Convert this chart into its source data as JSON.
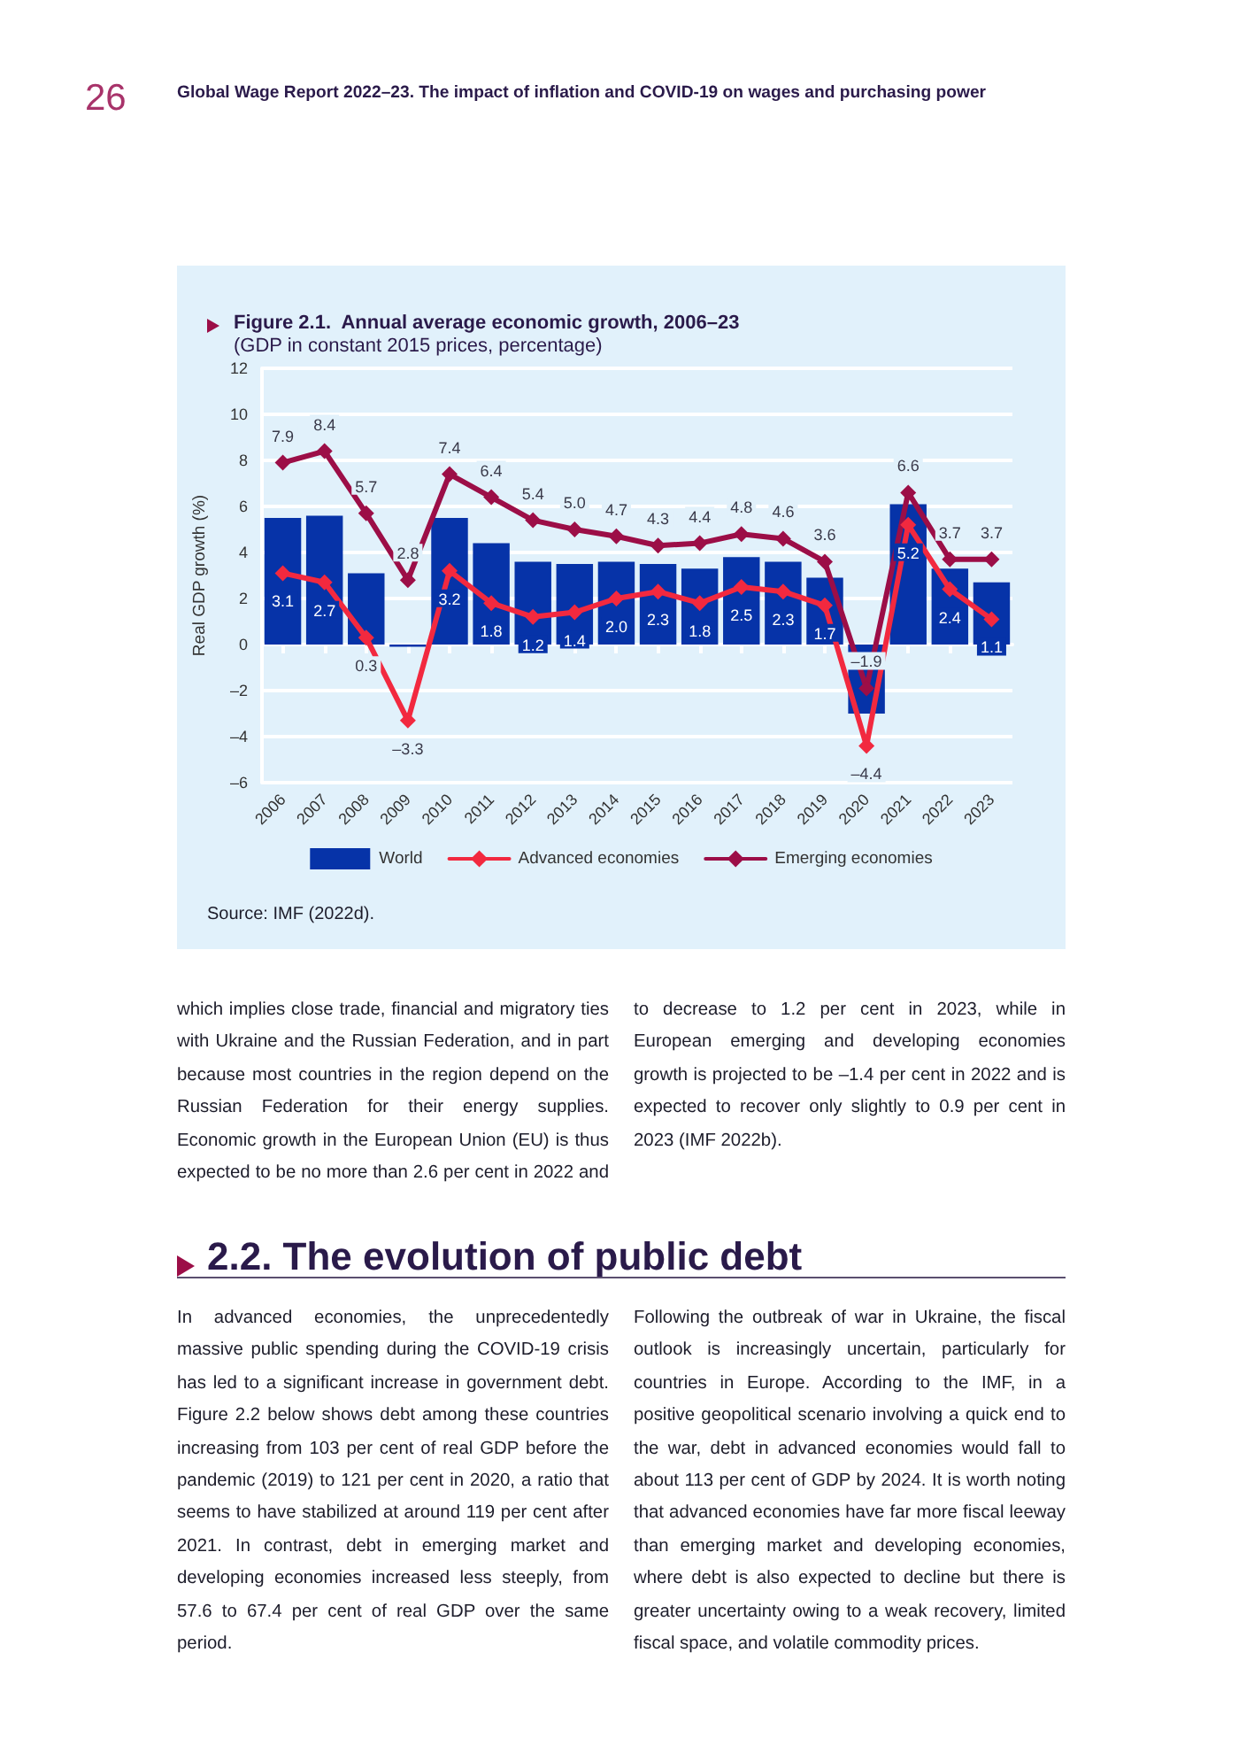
{
  "chart_data": {
    "type": "bar",
    "title": "Figure 2.1.  Annual average economic growth, 2006–23",
    "subtitle": "(GDP in constant 2015 prices, percentage)",
    "ylabel": "Real GDP growth (%)",
    "categories": [
      "2006",
      "2007",
      "2008",
      "2009",
      "2010",
      "2011",
      "2012",
      "2013",
      "2014",
      "2015",
      "2016",
      "2017",
      "2018",
      "2019",
      "2020",
      "2021",
      "2022",
      "2023"
    ],
    "series": [
      {
        "name": "World",
        "color": "#0633a8",
        "values": [
          5.5,
          5.6,
          3.1,
          -0.1,
          5.5,
          4.4,
          3.6,
          3.5,
          3.6,
          3.5,
          3.3,
          3.8,
          3.6,
          2.9,
          -3.0,
          6.1,
          3.3,
          2.7
        ]
      },
      {
        "name": "Advanced economies",
        "type": "line",
        "color": "#f2293f",
        "values": [
          3.1,
          2.7,
          0.3,
          -3.3,
          3.2,
          1.8,
          1.2,
          1.4,
          2.0,
          2.3,
          1.8,
          2.5,
          2.3,
          1.7,
          -4.4,
          5.2,
          2.4,
          1.1
        ],
        "value_labels": [
          "3.1",
          "2.7",
          "0.3",
          "–3.3",
          "3.2",
          "1.8",
          "1.2",
          "1.4",
          "2.0",
          "2.3",
          "1.8",
          "2.5",
          "2.3",
          "1.7",
          "–4.4",
          "5.2",
          "2.4",
          "1.1"
        ]
      },
      {
        "name": "Emerging economies",
        "type": "line",
        "color": "#9c0e47",
        "values": [
          7.9,
          8.4,
          5.7,
          2.8,
          7.4,
          6.4,
          5.4,
          5.0,
          4.7,
          4.3,
          4.4,
          4.8,
          4.6,
          3.6,
          -1.9,
          6.6,
          3.7,
          3.7
        ],
        "value_labels": [
          "7.9",
          "8.4",
          "5.7",
          "2.8",
          "7.4",
          "6.4",
          "5.4",
          "5.0",
          "4.7",
          "4.3",
          "4.4",
          "4.8",
          "4.6",
          "3.6",
          "–1.9",
          "6.6",
          "3.7",
          "3.7"
        ]
      }
    ],
    "ylim": [
      -6,
      12
    ],
    "yticks": [
      {
        "value": -6,
        "label": "–6"
      },
      {
        "value": -4,
        "label": "–4"
      },
      {
        "value": -2,
        "label": "–2"
      },
      0,
      2,
      4,
      6,
      8,
      10,
      12
    ],
    "grid": "y",
    "legend": "bottom",
    "marker": "diamond",
    "line_style": "solid",
    "annotations": [
      "26",
      "Global Wage Report 2022–23. The impact of inflation and COVID-19 on wages and purchasing power",
      "Source: IMF (2022d).",
      "which implies close trade, financial and migratory ties with Ukraine and the Russian Federation, and in part because most countries in the region depend on the Russian Federation for their energy supplies. Economic growth in the European Union (EU) is thus expected to be no more than 2.6 per cent in 2022 and to decrease to 1.2 per cent in 2023, while in European emerging and developing economies growth is projected to be –1.4 per cent in 2022 and is expected to recover only slightly to 0.9 per cent in 2023 (IMF 2022b).",
      "2.2. The evolution of public debt",
      "In advanced economies, the unprecedentedly massive public spending during the COVID-19 crisis has led to a significant increase in government debt. Figure 2.2 below shows debt among these countries increasing from 103 per cent of real GDP before the pandemic (2019) to 121 per cent in 2020, a ratio that seems to have stabilized at around 119 per cent after 2021. In contrast, debt in emerging market and developing economies increased less steeply, from 57.6 to 67.4 per cent of real GDP over the same period.",
      "Following the outbreak of war in Ukraine, the fiscal outlook is increasingly uncertain, particularly for countries in Europe. According to the IMF, in a positive geopolitical scenario involving a quick end to the war, debt in advanced economies would fall to about 113 per cent of GDP by 2024. It is worth noting that advanced economies have far more fiscal leeway than emerging market and developing economies, where debt is also expected to decline but there is greater uncertainty owing to a weak recovery, limited fiscal space, and volatile commodity prices."
    ]
  }
}
